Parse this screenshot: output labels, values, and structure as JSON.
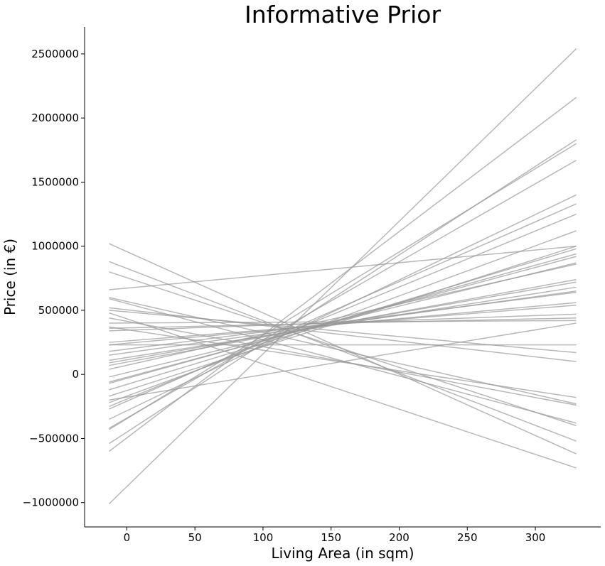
{
  "chart_data": {
    "type": "line",
    "title": "Informative Prior",
    "xlabel": "Living Area (in sqm)",
    "ylabel": "Price (in €)",
    "xlim": [
      -31,
      348
    ],
    "ylim": [
      -1190000,
      2710000
    ],
    "x_ticks": [
      0,
      50,
      100,
      150,
      200,
      250,
      300
    ],
    "y_ticks": [
      -1000000,
      -500000,
      0,
      500000,
      1000000,
      1500000,
      2000000,
      2500000
    ],
    "x_tick_labels": [
      "0",
      "50",
      "100",
      "150",
      "200",
      "250",
      "300"
    ],
    "y_tick_labels": [
      "−1000000",
      "−500000",
      "0",
      "500000",
      "1000000",
      "1500000",
      "2000000",
      "2500000"
    ],
    "grid": false,
    "line_color": "#999999",
    "line_alpha": 0.7,
    "x": [
      -13,
      330
    ],
    "series": [
      {
        "values": [
          -1010000,
          2540000
        ]
      },
      {
        "values": [
          -600000,
          2160000
        ]
      },
      {
        "values": [
          -540000,
          1830000
        ]
      },
      {
        "values": [
          -430000,
          1800000
        ]
      },
      {
        "values": [
          -420000,
          1670000
        ]
      },
      {
        "values": [
          -350000,
          1400000
        ]
      },
      {
        "values": [
          -270000,
          1330000
        ]
      },
      {
        "values": [
          -250000,
          1250000
        ]
      },
      {
        "values": [
          -220000,
          1120000
        ]
      },
      {
        "values": [
          -170000,
          1000000
        ]
      },
      {
        "values": [
          -120000,
          980000
        ]
      },
      {
        "values": [
          -70000,
          940000
        ]
      },
      {
        "values": [
          -60000,
          920000
        ]
      },
      {
        "values": [
          -20000,
          870000
        ]
      },
      {
        "values": [
          40000,
          860000
        ]
      },
      {
        "values": [
          70000,
          740000
        ]
      },
      {
        "values": [
          90000,
          720000
        ]
      },
      {
        "values": [
          110000,
          680000
        ]
      },
      {
        "values": [
          150000,
          650000
        ]
      },
      {
        "values": [
          180000,
          640000
        ]
      },
      {
        "values": [
          230000,
          560000
        ]
      },
      {
        "values": [
          250000,
          540000
        ]
      },
      {
        "values": [
          340000,
          470000
        ]
      },
      {
        "values": [
          360000,
          440000
        ]
      },
      {
        "values": [
          400000,
          420000
        ]
      },
      {
        "values": [
          230000,
          230000
        ]
      },
      {
        "values": [
          500000,
          170000
        ]
      },
      {
        "values": [
          520000,
          100000
        ]
      },
      {
        "values": [
          370000,
          -180000
        ]
      },
      {
        "values": [
          440000,
          -240000
        ]
      },
      {
        "values": [
          660000,
          1000000
        ]
      },
      {
        "values": [
          600000,
          -230000
        ]
      },
      {
        "values": [
          590000,
          -380000
        ]
      },
      {
        "values": [
          800000,
          -400000
        ]
      },
      {
        "values": [
          880000,
          -520000
        ]
      },
      {
        "values": [
          1020000,
          -620000
        ]
      },
      {
        "values": [
          480000,
          -730000
        ]
      },
      {
        "values": [
          -200000,
          400000
        ]
      }
    ]
  }
}
